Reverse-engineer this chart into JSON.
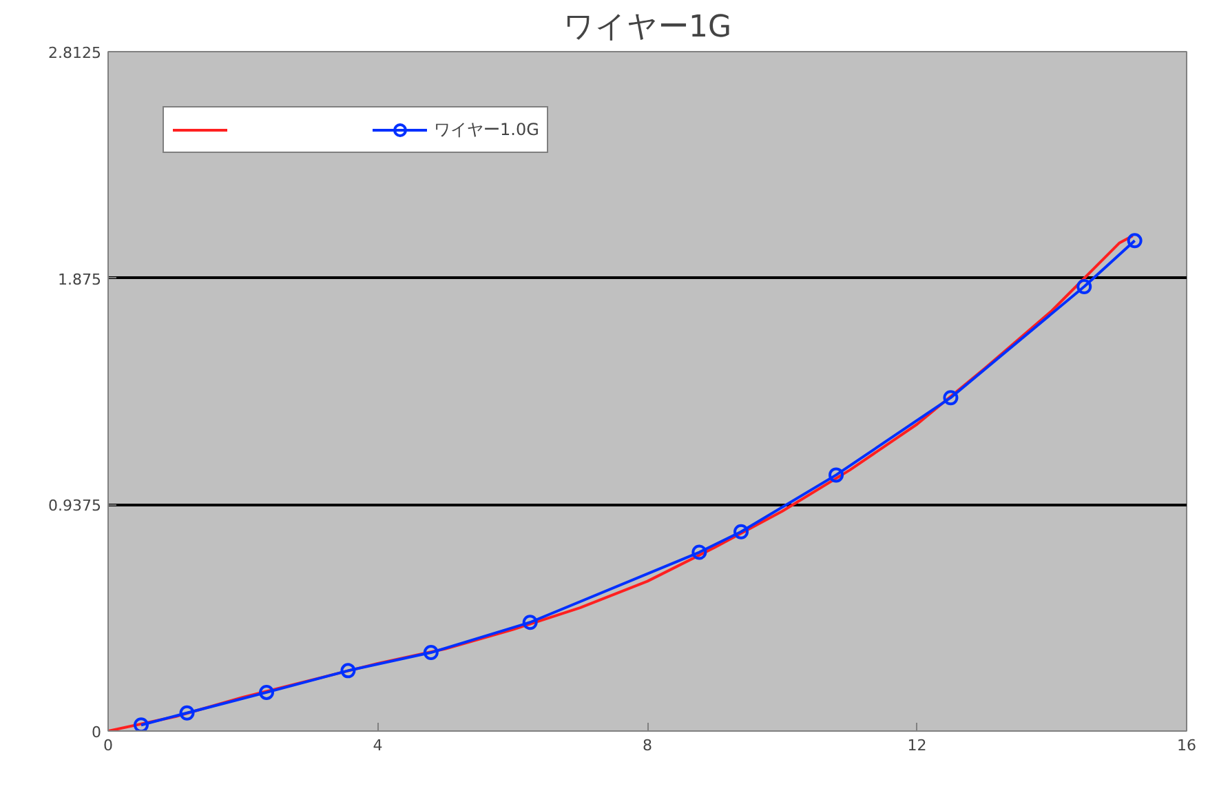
{
  "chart_data": {
    "type": "line",
    "title": "ワイヤー1G",
    "xlim": [
      0,
      16
    ],
    "xticks": [
      0,
      4,
      8,
      12,
      16
    ],
    "ylim": [
      0,
      2.8125
    ],
    "yticks": [
      0,
      0.9375,
      1.875,
      2.8125
    ],
    "grid": "y",
    "legend": "top left",
    "series": [
      {
        "color": "#ff2020",
        "marker": "none",
        "x": [
          0,
          1,
          2,
          3,
          4,
          5,
          6,
          7,
          8,
          9,
          10,
          11,
          12,
          13,
          14,
          15,
          15.2
        ],
        "values": [
          0,
          0.06,
          0.14,
          0.21,
          0.28,
          0.34,
          0.42,
          0.51,
          0.62,
          0.76,
          0.91,
          1.08,
          1.27,
          1.5,
          1.74,
          2.02,
          2.05
        ]
      },
      {
        "name": "ワイヤー1.0G",
        "color": "#0030ff",
        "marker": "circle",
        "x": [
          0.49,
          1.17,
          2.35,
          3.56,
          4.79,
          6.26,
          8.77,
          9.39,
          10.8,
          12.5,
          14.48,
          15.23
        ],
        "values": [
          0.025,
          0.075,
          0.16,
          0.25,
          0.325,
          0.45,
          0.74,
          0.825,
          1.06,
          1.38,
          1.84,
          2.03
        ]
      }
    ]
  }
}
